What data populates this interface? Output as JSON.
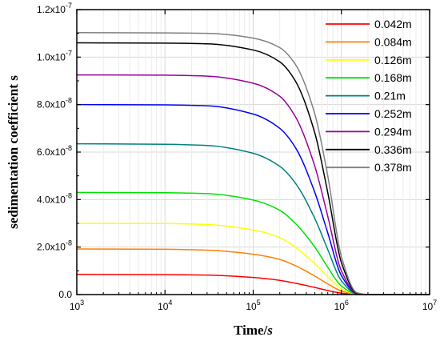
{
  "chart_data": {
    "type": "line",
    "xlabel": "Time/s",
    "xlabel_main": "Time/",
    "xlabel_unit": "s",
    "ylabel": "sedimentation coefficient s",
    "x_scale": "log",
    "xlim": [
      1000,
      10000000
    ],
    "ylim": [
      0,
      1.2e-07
    ],
    "x_ticks": [
      {
        "base": "10",
        "exp": "3"
      },
      {
        "base": "10",
        "exp": "4"
      },
      {
        "base": "10",
        "exp": "5"
      },
      {
        "base": "10",
        "exp": "6"
      },
      {
        "base": "10",
        "exp": "7"
      }
    ],
    "y_ticks": [
      {
        "value": 0,
        "mant": "0.0",
        "exp": ""
      },
      {
        "value": 2e-08,
        "mant": "2.0x10",
        "exp": "-8"
      },
      {
        "value": 4e-08,
        "mant": "4.0x10",
        "exp": "-8"
      },
      {
        "value": 6e-08,
        "mant": "6.0x10",
        "exp": "-8"
      },
      {
        "value": 8e-08,
        "mant": "8.0x10",
        "exp": "-8"
      },
      {
        "value": 1e-07,
        "mant": "1.0x10",
        "exp": "-7"
      },
      {
        "value": 1.2e-07,
        "mant": "1.2x10",
        "exp": "-7"
      }
    ],
    "grid": true,
    "legend_position": "top-right",
    "x": [
      1000,
      10000,
      30000,
      100000,
      200000,
      300000,
      500000,
      700000,
      1000000,
      1500000,
      2000000,
      10000000
    ],
    "series": [
      {
        "name": "0.042m",
        "color": "#ff0000",
        "values": [
          8.5e-09,
          8.4e-09,
          8.2e-09,
          7.2e-09,
          6e-09,
          4.8e-09,
          3e-09,
          1.7e-09,
          6e-10,
          5e-11,
          0,
          0
        ]
      },
      {
        "name": "0.084m",
        "color": "#ff8000",
        "values": [
          1.92e-08,
          1.91e-08,
          1.87e-08,
          1.7e-08,
          1.48e-08,
          1.22e-08,
          7.8e-09,
          4.5e-09,
          1.5e-09,
          1e-10,
          0,
          0
        ]
      },
      {
        "name": "0.126m",
        "color": "#ffff00",
        "values": [
          3e-08,
          2.99e-08,
          2.95e-08,
          2.72e-08,
          2.4e-08,
          2e-08,
          1.3e-08,
          7.5e-09,
          2.4e-09,
          2e-10,
          0,
          0
        ]
      },
      {
        "name": "0.168m",
        "color": "#00e000",
        "values": [
          4.3e-08,
          4.29e-08,
          4.25e-08,
          3.98e-08,
          3.55e-08,
          3e-08,
          2e-08,
          1.15e-08,
          3.6e-09,
          2e-10,
          0,
          0
        ]
      },
      {
        "name": "0.21m",
        "color": "#008080",
        "values": [
          6.35e-08,
          6.33e-08,
          6.28e-08,
          5.95e-08,
          5.4e-08,
          4.7e-08,
          3.2e-08,
          1.9e-08,
          5.8e-09,
          3e-10,
          0,
          0
        ]
      },
      {
        "name": "0.252m",
        "color": "#0000ff",
        "values": [
          8e-08,
          7.99e-08,
          7.95e-08,
          7.6e-08,
          7e-08,
          6.2e-08,
          4.3e-08,
          2.6e-08,
          8e-09,
          4e-10,
          0,
          0
        ]
      },
      {
        "name": "0.294m",
        "color": "#9b009b",
        "values": [
          9.25e-08,
          9.24e-08,
          9.2e-08,
          8.9e-08,
          8.35e-08,
          7.5e-08,
          5.4e-08,
          3.3e-08,
          1e-08,
          5e-10,
          0,
          0
        ]
      },
      {
        "name": "0.336m",
        "color": "#000000",
        "values": [
          1.06e-07,
          1.059e-07,
          1.056e-07,
          1.03e-07,
          9.8e-08,
          9e-08,
          6.8e-08,
          4.3e-08,
          1.35e-08,
          6e-10,
          0,
          0
        ]
      },
      {
        "name": "0.378m",
        "color": "#808080",
        "values": [
          1.103e-07,
          1.102e-07,
          1.1e-07,
          1.08e-07,
          1.04e-07,
          9.7e-08,
          7.6e-08,
          5e-08,
          1.6e-08,
          8e-10,
          0,
          0
        ]
      }
    ]
  }
}
